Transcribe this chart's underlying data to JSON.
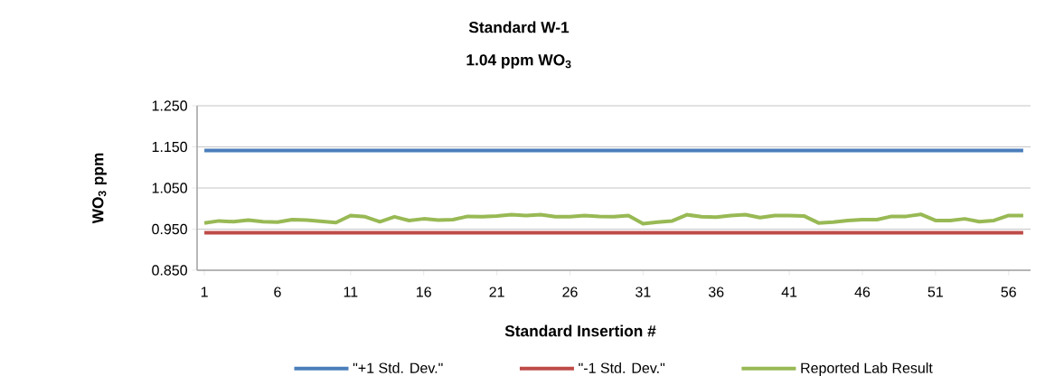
{
  "chart_data": {
    "type": "line",
    "title": "Standard W-1",
    "subtitle": "1.04 ppm WO$_{3}$",
    "xlabel": "Standard Insertion #",
    "ylabel": "WO$_{3}$ ppm",
    "categories": [
      "1",
      null,
      null,
      null,
      null,
      "6",
      null,
      null,
      null,
      null,
      "11",
      null,
      null,
      null,
      null,
      "16",
      null,
      null,
      null,
      null,
      "21",
      null,
      null,
      null,
      null,
      "26",
      null,
      null,
      null,
      null,
      "31",
      null,
      null,
      null,
      null,
      "36",
      null,
      null,
      null,
      null,
      "41",
      null,
      null,
      null,
      null,
      "46",
      null,
      null,
      null,
      null,
      "51",
      null,
      null,
      null,
      null,
      "56",
      null
    ],
    "ylim": [
      0.85,
      1.25
    ],
    "yticks": [
      {
        "value": 0.85,
        "label": "0.850"
      },
      {
        "value": 0.95,
        "label": "0.950"
      },
      {
        "value": 1.05,
        "label": "1.050"
      },
      {
        "value": 1.15,
        "label": "1.150"
      },
      {
        "value": 1.25,
        "label": "1.250"
      }
    ],
    "grid": "y",
    "legend": "bottom",
    "marker": "none",
    "line_style": "solid",
    "series": [
      {
        "name": "\"+1 Std. Dev.\"",
        "color": "#4a7ebb",
        "values": [
          1.141,
          1.141,
          1.141,
          1.141,
          1.141,
          1.141,
          1.141,
          1.141,
          1.141,
          1.141,
          1.141,
          1.141,
          1.141,
          1.141,
          1.141,
          1.141,
          1.141,
          1.141,
          1.141,
          1.141,
          1.141,
          1.141,
          1.141,
          1.141,
          1.141,
          1.141,
          1.141,
          1.141,
          1.141,
          1.141,
          1.141,
          1.141,
          1.141,
          1.141,
          1.141,
          1.141,
          1.141,
          1.141,
          1.141,
          1.141,
          1.141,
          1.141,
          1.141,
          1.141,
          1.141,
          1.141,
          1.141,
          1.141,
          1.141,
          1.141,
          1.141,
          1.141,
          1.141,
          1.141,
          1.141,
          1.141,
          1.141
        ]
      },
      {
        "name": "\"-1 Std. Dev.\"",
        "color": "#be4b48",
        "values": [
          0.941,
          0.941,
          0.941,
          0.941,
          0.941,
          0.941,
          0.941,
          0.941,
          0.941,
          0.941,
          0.941,
          0.941,
          0.941,
          0.941,
          0.941,
          0.941,
          0.941,
          0.941,
          0.941,
          0.941,
          0.941,
          0.941,
          0.941,
          0.941,
          0.941,
          0.941,
          0.941,
          0.941,
          0.941,
          0.941,
          0.941,
          0.941,
          0.941,
          0.941,
          0.941,
          0.941,
          0.941,
          0.941,
          0.941,
          0.941,
          0.941,
          0.941,
          0.941,
          0.941,
          0.941,
          0.941,
          0.941,
          0.941,
          0.941,
          0.941,
          0.941,
          0.941,
          0.941,
          0.941,
          0.941,
          0.941,
          0.941
        ]
      },
      {
        "name": "Reported Lab Result",
        "color": "#98b954",
        "values": [
          0.965,
          0.97,
          0.968,
          0.972,
          0.968,
          0.967,
          0.973,
          0.972,
          0.969,
          0.966,
          0.983,
          0.98,
          0.968,
          0.98,
          0.971,
          0.975,
          0.972,
          0.973,
          0.981,
          0.98,
          0.982,
          0.985,
          0.983,
          0.985,
          0.98,
          0.98,
          0.983,
          0.981,
          0.98,
          0.983,
          0.963,
          0.967,
          0.97,
          0.985,
          0.98,
          0.979,
          0.983,
          0.985,
          0.978,
          0.983,
          0.983,
          0.982,
          0.965,
          0.967,
          0.971,
          0.973,
          0.973,
          0.981,
          0.981,
          0.986,
          0.971,
          0.971,
          0.975,
          0.968,
          0.971,
          0.983,
          0.983
        ]
      }
    ]
  }
}
